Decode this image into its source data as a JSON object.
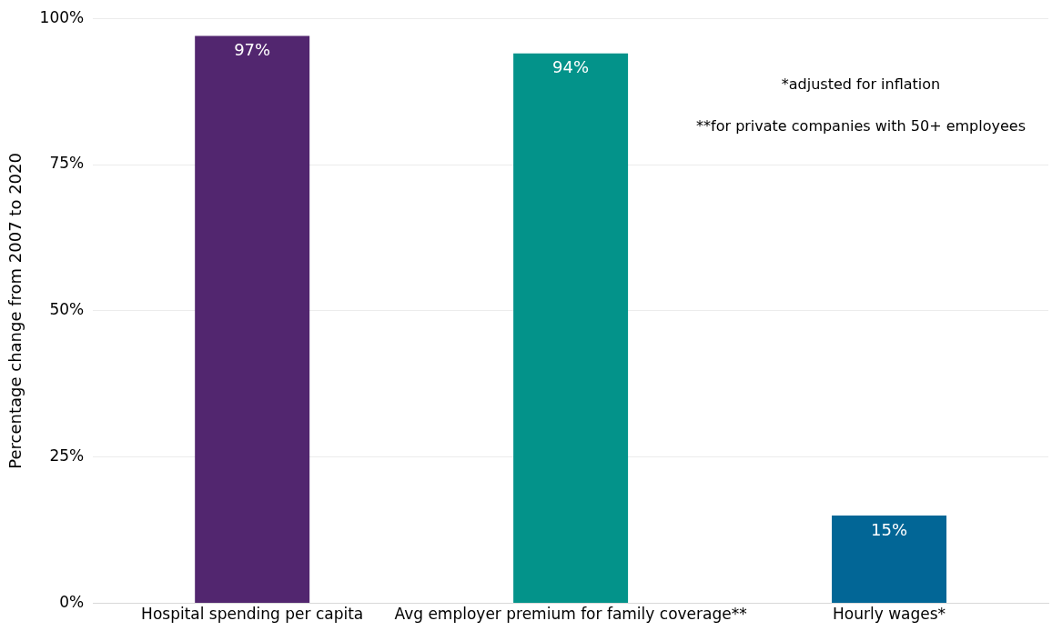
{
  "chart_data": {
    "type": "bar",
    "ylabel": "Percentage change from 2007 to 2020",
    "categories": [
      "Hospital spending per capita",
      "Avg employer premium for family coverage**",
      "Hourly wages*"
    ],
    "values": [
      97,
      94,
      15
    ],
    "colors": [
      "#52266f",
      "#03938a",
      "#026696"
    ],
    "value_labels": [
      "97%",
      "94%",
      "15%"
    ],
    "ylim": [
      0,
      100
    ],
    "yticks": [
      {
        "value": 0,
        "label": "0%"
      },
      {
        "value": 25,
        "label": "25%"
      },
      {
        "value": 50,
        "label": "50%"
      },
      {
        "value": 75,
        "label": "75%"
      },
      {
        "value": 100,
        "label": "100%"
      }
    ],
    "grid": "y",
    "legend": false,
    "annotations": [
      "*adjusted for inflation",
      "**for private companies with 50+ employees"
    ]
  }
}
